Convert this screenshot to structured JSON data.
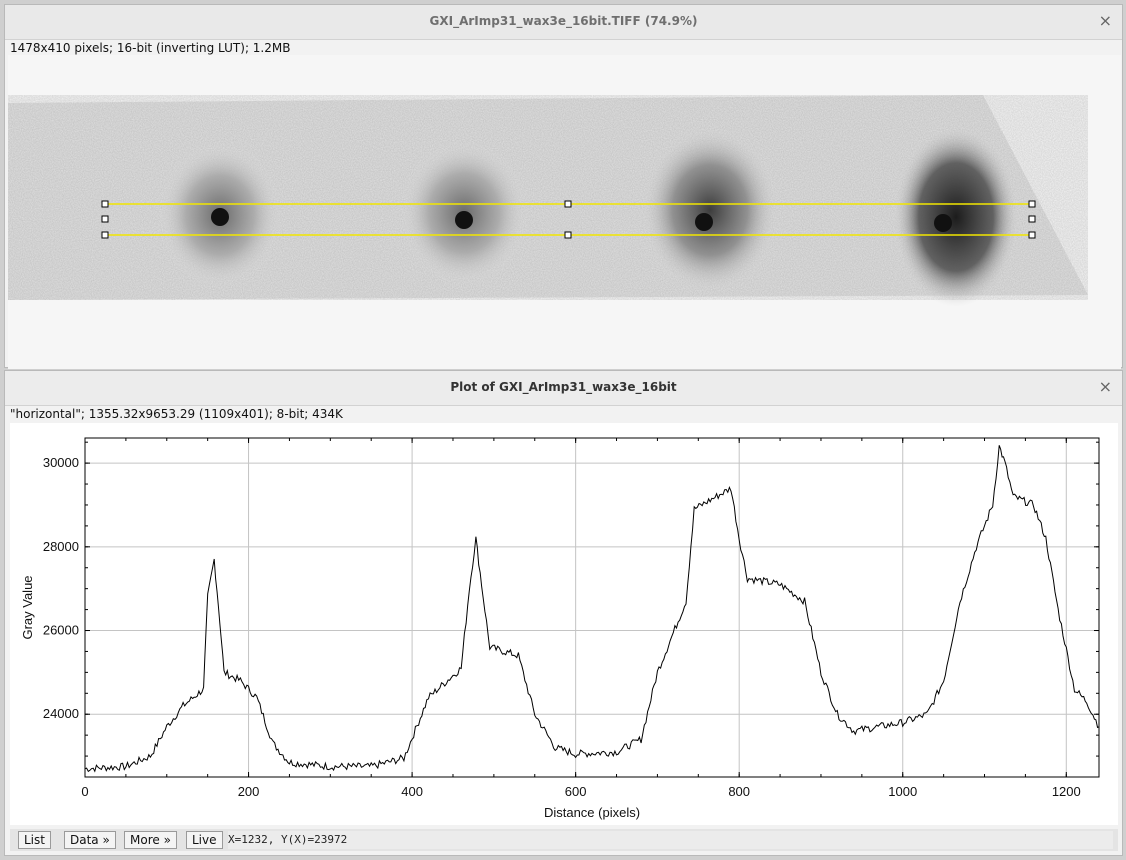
{
  "image_window": {
    "title": "GXI_ArImp31_wax3e_16bit.TIFF (74.9%)",
    "info": "1478x410 pixels; 16-bit (inverting LUT); 1.2MB",
    "close_glyph": "×"
  },
  "plot_window": {
    "title": "Plot of GXI_ArImp31_wax3e_16bit",
    "info": "\"horizontal\"; 1355.32x9653.29   (1109x401); 8-bit; 434K",
    "close_glyph": "×"
  },
  "buttons": {
    "list": "List",
    "data": "Data »",
    "more": "More »",
    "live": "Live"
  },
  "status": {
    "coords": "X=1232,  Y(X)=23972"
  },
  "chart_data": {
    "type": "line",
    "xlabel": "Distance (pixels)",
    "ylabel": "Gray Value",
    "xlim": [
      0,
      1240
    ],
    "ylim": [
      22500,
      30600
    ],
    "xticks": [
      0,
      200,
      400,
      600,
      800,
      1000,
      1200
    ],
    "yticks": [
      24000,
      26000,
      28000,
      30000
    ],
    "grid": true,
    "series": [
      {
        "points": [
          [
            0,
            22700
          ],
          [
            50,
            22750
          ],
          [
            80,
            23000
          ],
          [
            100,
            23700
          ],
          [
            120,
            24200
          ],
          [
            145,
            24600
          ],
          [
            150,
            26800
          ],
          [
            158,
            27700
          ],
          [
            165,
            26200
          ],
          [
            170,
            25000
          ],
          [
            190,
            24800
          ],
          [
            210,
            24400
          ],
          [
            230,
            23300
          ],
          [
            250,
            22850
          ],
          [
            300,
            22750
          ],
          [
            350,
            22750
          ],
          [
            390,
            22950
          ],
          [
            420,
            24400
          ],
          [
            460,
            25100
          ],
          [
            470,
            27000
          ],
          [
            478,
            28200
          ],
          [
            485,
            27100
          ],
          [
            495,
            25600
          ],
          [
            530,
            25400
          ],
          [
            550,
            24000
          ],
          [
            575,
            23200
          ],
          [
            600,
            23050
          ],
          [
            650,
            23100
          ],
          [
            680,
            23400
          ],
          [
            700,
            25000
          ],
          [
            735,
            26700
          ],
          [
            745,
            28900
          ],
          [
            790,
            29400
          ],
          [
            800,
            28200
          ],
          [
            810,
            27250
          ],
          [
            850,
            27100
          ],
          [
            880,
            26700
          ],
          [
            900,
            25000
          ],
          [
            920,
            24000
          ],
          [
            940,
            23600
          ],
          [
            970,
            23700
          ],
          [
            1000,
            23800
          ],
          [
            1030,
            24000
          ],
          [
            1050,
            24800
          ],
          [
            1070,
            26700
          ],
          [
            1090,
            28000
          ],
          [
            1110,
            29000
          ],
          [
            1118,
            30400
          ],
          [
            1125,
            30000
          ],
          [
            1135,
            29200
          ],
          [
            1160,
            29000
          ],
          [
            1175,
            28200
          ],
          [
            1190,
            26500
          ],
          [
            1210,
            24600
          ],
          [
            1225,
            24300
          ],
          [
            1240,
            23700
          ]
        ]
      }
    ]
  }
}
